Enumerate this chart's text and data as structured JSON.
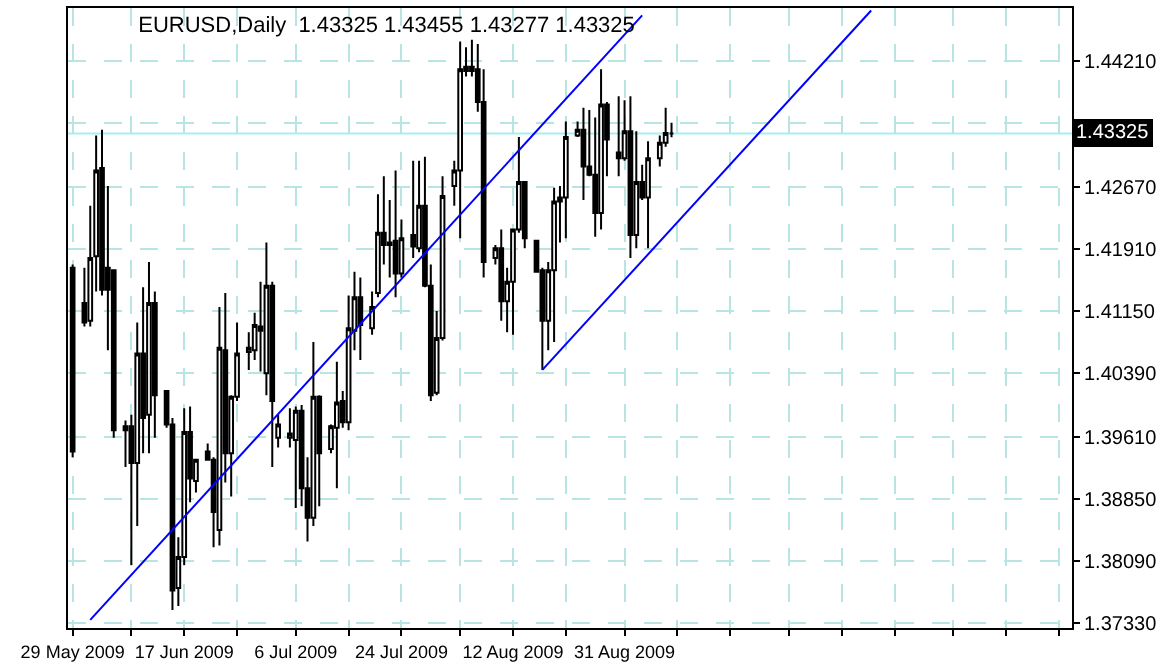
{
  "chart_data": {
    "type": "candlestick",
    "title": "EURUSD,Daily  1.43325 1.43455 1.43277 1.43325",
    "x": [
      "2009-05-29",
      "2009-05-31",
      "2009-06-01",
      "2009-06-02",
      "2009-06-03",
      "2009-06-04",
      "2009-06-05",
      "2009-06-07",
      "2009-06-08",
      "2009-06-09",
      "2009-06-10",
      "2009-06-11",
      "2009-06-12",
      "2009-06-14",
      "2009-06-15",
      "2009-06-16",
      "2009-06-17",
      "2009-06-18",
      "2009-06-19",
      "2009-06-21",
      "2009-06-22",
      "2009-06-23",
      "2009-06-24",
      "2009-06-25",
      "2009-06-26",
      "2009-06-28",
      "2009-06-29",
      "2009-06-30",
      "2009-07-01",
      "2009-07-02",
      "2009-07-03",
      "2009-07-05",
      "2009-07-06",
      "2009-07-07",
      "2009-07-08",
      "2009-07-09",
      "2009-07-10",
      "2009-07-12",
      "2009-07-13",
      "2009-07-14",
      "2009-07-15",
      "2009-07-16",
      "2009-07-17",
      "2009-07-19",
      "2009-07-20",
      "2009-07-21",
      "2009-07-22",
      "2009-07-23",
      "2009-07-24",
      "2009-07-26",
      "2009-07-27",
      "2009-07-28",
      "2009-07-29",
      "2009-07-30",
      "2009-07-31",
      "2009-08-02",
      "2009-08-03",
      "2009-08-04",
      "2009-08-05",
      "2009-08-06",
      "2009-08-07",
      "2009-08-09",
      "2009-08-10",
      "2009-08-11",
      "2009-08-12",
      "2009-08-13",
      "2009-08-14",
      "2009-08-16",
      "2009-08-17",
      "2009-08-18",
      "2009-08-19",
      "2009-08-20",
      "2009-08-21",
      "2009-08-23",
      "2009-08-24",
      "2009-08-25",
      "2009-08-26",
      "2009-08-27",
      "2009-08-28",
      "2009-08-30",
      "2009-08-31",
      "2009-09-01",
      "2009-09-02",
      "2009-09-03",
      "2009-09-04",
      "2009-09-06",
      "2009-09-07",
      "2009-09-08"
    ],
    "ohlc": [
      [
        1.4168,
        1.4172,
        1.3936,
        1.3943
      ],
      [
        1.4125,
        1.4168,
        1.4096,
        1.4101
      ],
      [
        1.4103,
        1.4244,
        1.4096,
        1.418
      ],
      [
        1.4182,
        1.433,
        1.4139,
        1.4287
      ],
      [
        1.429,
        1.4337,
        1.4134,
        1.4141
      ],
      [
        1.4168,
        1.4268,
        1.4067,
        1.4141
      ],
      [
        1.4165,
        1.4165,
        1.396,
        1.3969
      ],
      [
        1.3969,
        1.3981,
        1.3924,
        1.3974
      ],
      [
        1.3974,
        1.3988,
        1.3804,
        1.3929
      ],
      [
        1.3929,
        1.4101,
        1.3852,
        1.4063
      ],
      [
        1.4063,
        1.4144,
        1.3941,
        1.3984
      ],
      [
        1.3988,
        1.4175,
        1.3941,
        1.4125
      ],
      [
        1.4125,
        1.4139,
        1.396,
        1.4012
      ],
      [
        1.4017,
        1.4017,
        1.3972,
        1.3976
      ],
      [
        1.3976,
        1.3984,
        1.3749,
        1.3773
      ],
      [
        1.3776,
        1.3838,
        1.3754,
        1.3814
      ],
      [
        1.3814,
        1.3996,
        1.3804,
        1.3967
      ],
      [
        1.3967,
        1.3998,
        1.3881,
        1.391
      ],
      [
        1.3907,
        1.3933,
        1.3893,
        1.3933
      ],
      [
        1.3943,
        1.3953,
        1.3933,
        1.3933
      ],
      [
        1.3933,
        1.3936,
        1.3826,
        1.3869
      ],
      [
        1.3847,
        1.412,
        1.3828,
        1.407
      ],
      [
        1.4067,
        1.4137,
        1.3905,
        1.3941
      ],
      [
        1.3941,
        1.4012,
        1.3888,
        1.401
      ],
      [
        1.401,
        1.4101,
        1.4005,
        1.4063
      ],
      [
        1.4065,
        1.4089,
        1.4043,
        1.407
      ],
      [
        1.4067,
        1.4113,
        1.4055,
        1.4098
      ],
      [
        1.4096,
        1.4151,
        1.4041,
        1.4091
      ],
      [
        1.4039,
        1.4199,
        1.4012,
        1.4146
      ],
      [
        1.4146,
        1.4151,
        1.3924,
        1.4005
      ],
      [
        1.396,
        1.3988,
        1.3948,
        1.3976
      ],
      [
        1.396,
        1.3996,
        1.3948,
        1.3965
      ],
      [
        1.3957,
        1.3998,
        1.3874,
        1.3993
      ],
      [
        1.3993,
        1.4,
        1.3876,
        1.3898
      ],
      [
        1.3898,
        1.3936,
        1.3833,
        1.3862
      ],
      [
        1.3862,
        1.4077,
        1.3852,
        1.401
      ],
      [
        1.401,
        1.4012,
        1.3876,
        1.3941
      ],
      [
        1.3946,
        1.3976,
        1.3941,
        1.3974
      ],
      [
        1.3972,
        1.4053,
        1.3898,
        1.4003
      ],
      [
        1.4005,
        1.4017,
        1.3972,
        1.3979
      ],
      [
        1.3979,
        1.4134,
        1.3969,
        1.4094
      ],
      [
        1.4091,
        1.4163,
        1.4067,
        1.4132
      ],
      [
        1.4132,
        1.4156,
        1.4055,
        1.4098
      ],
      [
        1.4094,
        1.4139,
        1.4086,
        1.412
      ],
      [
        1.4137,
        1.4258,
        1.4132,
        1.4211
      ],
      [
        1.4211,
        1.428,
        1.4172,
        1.4196
      ],
      [
        1.4196,
        1.4251,
        1.4156,
        1.4199
      ],
      [
        1.4201,
        1.4287,
        1.4132,
        1.4161
      ],
      [
        1.4161,
        1.4227,
        1.4156,
        1.4204
      ],
      [
        1.4208,
        1.4299,
        1.418,
        1.4194
      ],
      [
        1.4192,
        1.4299,
        1.4187,
        1.4244
      ],
      [
        1.4244,
        1.4304,
        1.4144,
        1.4146
      ],
      [
        1.4146,
        1.4172,
        1.4005,
        1.4012
      ],
      [
        1.4015,
        1.4115,
        1.4012,
        1.4082
      ],
      [
        1.4082,
        1.428,
        1.4079,
        1.4256
      ],
      [
        1.4268,
        1.4299,
        1.4244,
        1.4287
      ],
      [
        1.4287,
        1.4445,
        1.4204,
        1.4411
      ],
      [
        1.4414,
        1.4438,
        1.4402,
        1.4409
      ],
      [
        1.4414,
        1.4447,
        1.4402,
        1.4409
      ],
      [
        1.4411,
        1.4442,
        1.4359,
        1.4371
      ],
      [
        1.4371,
        1.4411,
        1.4156,
        1.4175
      ],
      [
        1.418,
        1.4196,
        1.4172,
        1.4192
      ],
      [
        1.4192,
        1.4215,
        1.4103,
        1.4127
      ],
      [
        1.4127,
        1.4168,
        1.4089,
        1.4151
      ],
      [
        1.4151,
        1.4215,
        1.4086,
        1.4215
      ],
      [
        1.4215,
        1.4328,
        1.4211,
        1.4273
      ],
      [
        1.4273,
        1.4273,
        1.4192,
        1.4204
      ],
      [
        1.4201,
        1.4201,
        1.4163,
        1.4163
      ],
      [
        1.4165,
        1.4168,
        1.4043,
        1.4103
      ],
      [
        1.4103,
        1.4175,
        1.4067,
        1.4165
      ],
      [
        1.4165,
        1.4266,
        1.4077,
        1.4249
      ],
      [
        1.4249,
        1.4268,
        1.4199,
        1.4254
      ],
      [
        1.4254,
        1.4347,
        1.4204,
        1.4328
      ],
      [
        1.433,
        1.4347,
        1.4328,
        1.4337
      ],
      [
        1.4337,
        1.4364,
        1.4251,
        1.4292
      ],
      [
        1.4292,
        1.4361,
        1.428,
        1.4282
      ],
      [
        1.4282,
        1.4352,
        1.4206,
        1.4235
      ],
      [
        1.4235,
        1.4411,
        1.4215,
        1.4368
      ],
      [
        1.4368,
        1.4371,
        1.428,
        1.4325
      ],
      [
        1.4309,
        1.4378,
        1.428,
        1.4302
      ],
      [
        1.4302,
        1.4373,
        1.4299,
        1.4335
      ],
      [
        1.4335,
        1.4378,
        1.418,
        1.4208
      ],
      [
        1.4208,
        1.4335,
        1.4192,
        1.4273
      ],
      [
        1.4273,
        1.4294,
        1.4251,
        1.4254
      ],
      [
        1.4254,
        1.4323,
        1.4192,
        1.4302
      ],
      [
        1.4302,
        1.433,
        1.4292,
        1.4321
      ],
      [
        1.4321,
        1.4364,
        1.4316,
        1.4333
      ],
      [
        1.43325,
        1.43455,
        1.43277,
        1.43325
      ]
    ],
    "series": [
      {
        "type": "line",
        "color": "#0000ff",
        "x": [
          "2009-06-01",
          "2009-09-03"
        ],
        "values": [
          1.3737,
          1.4477
        ]
      },
      {
        "type": "line",
        "color": "#0000ff",
        "x": [
          "2009-08-17",
          "2009-10-12"
        ],
        "values": [
          1.4043,
          1.4483
        ]
      }
    ],
    "ref_lines": [
      {
        "axis": "y",
        "value": 1.43325,
        "label": "1.43325",
        "color": "#a8eeee"
      }
    ],
    "xlim": [
      "2009-05-28T05:00",
      "2009-11-15T05:00"
    ],
    "xticks": [
      {
        "value": "2009-05-29",
        "label": "29 May 2009"
      },
      {
        "value": "2009-06-08",
        "label": null
      },
      {
        "value": "2009-06-17",
        "label": "17 Jun 2009"
      },
      {
        "value": "2009-06-26",
        "label": null
      },
      {
        "value": "2009-07-06",
        "label": "6 Jul 2009"
      },
      {
        "value": "2009-07-15",
        "label": null
      },
      {
        "value": "2009-07-24",
        "label": "24 Jul 2009"
      },
      {
        "value": "2009-08-03",
        "label": null
      },
      {
        "value": "2009-08-12",
        "label": "12 Aug 2009"
      },
      {
        "value": "2009-08-21",
        "label": null
      },
      {
        "value": "2009-08-31",
        "label": "31 Aug 2009"
      },
      {
        "value": "2009-09-09",
        "label": null
      },
      {
        "value": "2009-09-18",
        "label": null
      },
      {
        "value": "2009-09-28",
        "label": null
      },
      {
        "value": "2009-10-07",
        "label": null
      },
      {
        "value": "2009-10-16",
        "label": null
      },
      {
        "value": "2009-10-26",
        "label": null
      },
      {
        "value": "2009-11-04",
        "label": null
      },
      {
        "value": "2009-11-13",
        "label": null
      }
    ],
    "ylim": [
      1.3727,
      1.4486
    ],
    "yticks": [
      {
        "value": 1.4421,
        "label": "1.44210"
      },
      {
        "value": 1.4345,
        "label": null
      },
      {
        "value": 1.4267,
        "label": "1.42670"
      },
      {
        "value": 1.4191,
        "label": "1.41910"
      },
      {
        "value": 1.4115,
        "label": "1.41150"
      },
      {
        "value": 1.4039,
        "label": "1.40390"
      },
      {
        "value": 1.3961,
        "label": "1.39610"
      },
      {
        "value": 1.3885,
        "label": "1.38850"
      },
      {
        "value": 1.3809,
        "label": "1.38090"
      },
      {
        "value": 1.3733,
        "label": "1.37330"
      }
    ],
    "grid": true
  }
}
